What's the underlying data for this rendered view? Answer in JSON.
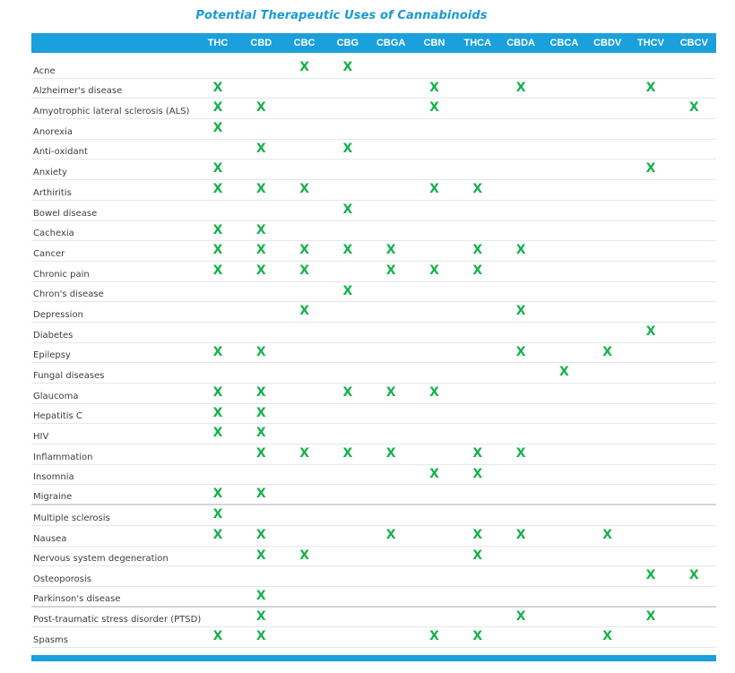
{
  "title": "Potential Therapeutic Uses of Cannabinoids",
  "columns": [
    "THC",
    "CBD",
    "CBC",
    "CBG",
    "CBGA",
    "CBN",
    "THCA",
    "CBDA",
    "CBCA",
    "CBDV",
    "THCV",
    "CBCV"
  ],
  "mark_symbol": "X",
  "colors": {
    "header": "#1aa0dc",
    "title": "#1a9ad6",
    "mark": "#14b24a"
  },
  "rows": [
    {
      "name": "Acne",
      "marks": [
        "CBC",
        "CBG"
      ]
    },
    {
      "name": "Alzheimer's disease",
      "marks": [
        "THC",
        "CBN",
        "CBDA",
        "THCV"
      ]
    },
    {
      "name": "Amyotrophic lateral sclerosis (ALS)",
      "marks": [
        "THC",
        "CBD",
        "CBN",
        "CBCV"
      ]
    },
    {
      "name": "Anorexia",
      "marks": [
        "THC"
      ]
    },
    {
      "name": "Anti-oxidant",
      "marks": [
        "CBD",
        "CBG"
      ]
    },
    {
      "name": "Anxiety",
      "marks": [
        "THC",
        "THCV"
      ]
    },
    {
      "name": "Arthiritis",
      "marks": [
        "THC",
        "CBD",
        "CBC",
        "CBN",
        "THCA"
      ]
    },
    {
      "name": "Bowel disease",
      "marks": [
        "CBG"
      ]
    },
    {
      "name": "Cachexia",
      "marks": [
        "THC",
        "CBD"
      ]
    },
    {
      "name": "Cancer",
      "marks": [
        "THC",
        "CBD",
        "CBC",
        "CBG",
        "CBGA",
        "THCA",
        "CBDA"
      ]
    },
    {
      "name": "Chronic pain",
      "marks": [
        "THC",
        "CBD",
        "CBC",
        "CBGA",
        "CBN",
        "THCA"
      ]
    },
    {
      "name": "Chron's disease",
      "marks": [
        "CBG"
      ]
    },
    {
      "name": "Depression",
      "marks": [
        "CBC",
        "CBDA"
      ]
    },
    {
      "name": "Diabetes",
      "marks": [
        "THCV"
      ]
    },
    {
      "name": "Epilepsy",
      "marks": [
        "THC",
        "CBD",
        "CBDA",
        "CBDV"
      ]
    },
    {
      "name": "Fungal diseases",
      "marks": [
        "CBCA"
      ]
    },
    {
      "name": "Glaucoma",
      "marks": [
        "THC",
        "CBD",
        "CBG",
        "CBGA",
        "CBN"
      ]
    },
    {
      "name": "Hepatitis C",
      "marks": [
        "THC",
        "CBD"
      ]
    },
    {
      "name": "HIV",
      "marks": [
        "THC",
        "CBD"
      ]
    },
    {
      "name": "Inflammation",
      "marks": [
        "CBD",
        "CBC",
        "CBG",
        "CBGA",
        "THCA",
        "CBDA"
      ]
    },
    {
      "name": "Insomnia",
      "marks": [
        "CBN",
        "THCA"
      ]
    },
    {
      "name": "Migraine",
      "marks": [
        "THC",
        "CBD"
      ]
    },
    {
      "name": "Multiple sclerosis",
      "marks": [
        "THC"
      ]
    },
    {
      "name": "Nausea",
      "marks": [
        "THC",
        "CBD",
        "CBGA",
        "THCA",
        "CBDA",
        "CBDV"
      ]
    },
    {
      "name": "Nervous system degeneration",
      "marks": [
        "CBD",
        "CBC",
        "THCA"
      ]
    },
    {
      "name": "Osteoporosis",
      "marks": [
        "THCV",
        "CBCV"
      ]
    },
    {
      "name": "Parkinson's disease",
      "marks": [
        "CBD"
      ]
    },
    {
      "name": "Post-traumatic stress disorder (PTSD)",
      "marks": [
        "CBD",
        "CBDA",
        "THCV"
      ]
    },
    {
      "name": "Spasms",
      "marks": [
        "THC",
        "CBD",
        "CBN",
        "THCA",
        "CBDV"
      ]
    }
  ]
}
